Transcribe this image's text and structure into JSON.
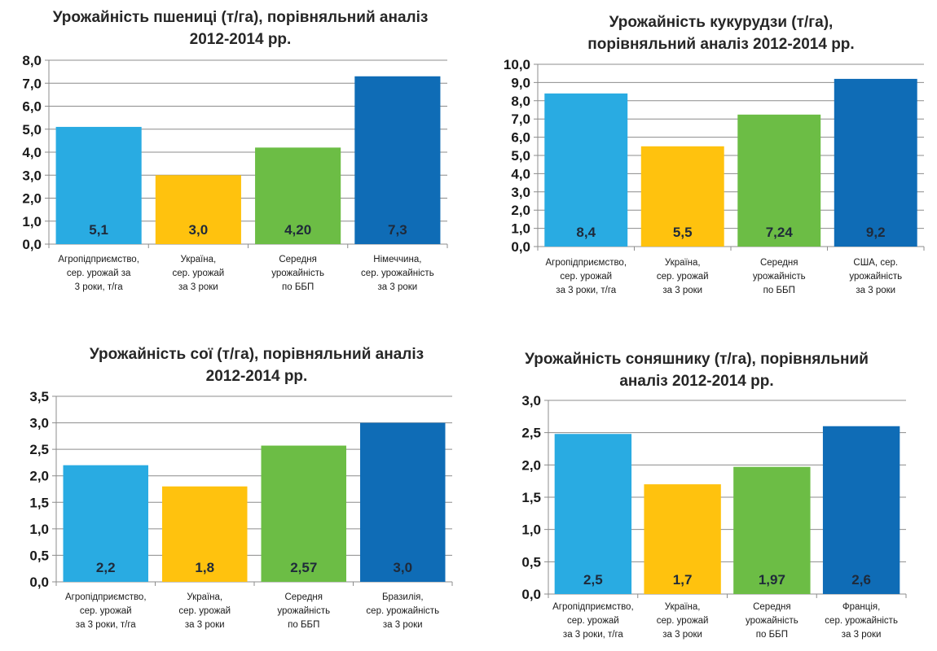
{
  "chart_data": [
    {
      "type": "bar",
      "title": "Урожайність пшениці (т/га), порівняльний аналіз\n2012-2014 рр.",
      "xlabel": "",
      "ylabel": "",
      "ylim": [
        0,
        8
      ],
      "yticks": [
        "0,0",
        "1,0",
        "2,0",
        "3,0",
        "4,0",
        "5,0",
        "6,0",
        "7,0",
        "8,0"
      ],
      "ytick_values": [
        0,
        1,
        2,
        3,
        4,
        5,
        6,
        7,
        8
      ],
      "grid": true,
      "categories": [
        [
          "Агропідприємство,",
          "сер. урожай за",
          "3 роки, т/га"
        ],
        [
          "Україна,",
          "сер. урожай",
          "за 3 роки"
        ],
        [
          "Середня",
          "урожайність",
          "по ББП"
        ],
        [
          "Німеччина,",
          "сер. урожайність",
          "за 3 роки"
        ]
      ],
      "values": [
        5.1,
        3.0,
        4.2,
        7.3
      ],
      "data_labels": [
        "5,1",
        "3,0",
        "4,20",
        "7,3"
      ],
      "colors": [
        "#29abe2",
        "#ffc20e",
        "#6cbd45",
        "#0f6cb6"
      ]
    },
    {
      "type": "bar",
      "title": "Урожайність кукурудзи (т/га),\nпорівняльний  аналіз  2012-2014 рр.",
      "xlabel": "",
      "ylabel": "",
      "ylim": [
        0,
        10
      ],
      "yticks": [
        "0,0",
        "1,0",
        "2,0",
        "3,0",
        "4,0",
        "5,0",
        "6,0",
        "7,0",
        "8,0",
        "9,0",
        "10,0"
      ],
      "ytick_values": [
        0,
        1,
        2,
        3,
        4,
        5,
        6,
        7,
        8,
        9,
        10
      ],
      "grid": true,
      "categories": [
        [
          "Агропідприємство,",
          "сер. урожай",
          "за 3 роки, т/га"
        ],
        [
          "Україна,",
          "сер. урожай",
          "за 3 роки"
        ],
        [
          "Середня",
          "урожайність",
          "по ББП"
        ],
        [
          "США, сер.",
          "урожайність",
          "за 3 роки"
        ]
      ],
      "values": [
        8.4,
        5.5,
        7.24,
        9.2
      ],
      "data_labels": [
        "8,4",
        "5,5",
        "7,24",
        "9,2"
      ],
      "colors": [
        "#29abe2",
        "#ffc20e",
        "#6cbd45",
        "#0f6cb6"
      ]
    },
    {
      "type": "bar",
      "title": "Урожайність сої (т/га), порівняльний аналіз\n2012-2014 рр.",
      "xlabel": "",
      "ylabel": "",
      "ylim": [
        0,
        3.5
      ],
      "yticks": [
        "0,0",
        "0,5",
        "1,0",
        "1,5",
        "2,0",
        "2,5",
        "3,0",
        "3,5"
      ],
      "ytick_values": [
        0,
        0.5,
        1,
        1.5,
        2,
        2.5,
        3,
        3.5
      ],
      "grid": true,
      "categories": [
        [
          "Агропідприємство,",
          "сер. урожай",
          "за 3 роки, т/га"
        ],
        [
          "Україна,",
          "сер. урожай",
          "за 3 роки"
        ],
        [
          "Середня",
          "урожайність",
          "по ББП"
        ],
        [
          "Бразилія,",
          "сер. урожайність",
          "за 3 роки"
        ]
      ],
      "values": [
        2.2,
        1.8,
        2.57,
        3.0
      ],
      "data_labels": [
        "2,2",
        "1,8",
        "2,57",
        "3,0"
      ],
      "colors": [
        "#29abe2",
        "#ffc20e",
        "#6cbd45",
        "#0f6cb6"
      ]
    },
    {
      "type": "bar",
      "title": "Урожайність соняшнику (т/га), порівняльний\nаналіз 2012-2014 рр.",
      "xlabel": "",
      "ylabel": "",
      "ylim": [
        0,
        3
      ],
      "yticks": [
        "0,0",
        "0,5",
        "1,0",
        "1,5",
        "2,0",
        "2,5",
        "3,0"
      ],
      "ytick_values": [
        0,
        0.5,
        1,
        1.5,
        2,
        2.5,
        3
      ],
      "grid": true,
      "categories": [
        [
          "Агропідприємство,",
          "сер. урожай",
          "за 3 роки, т/га"
        ],
        [
          "Україна,",
          "сер. урожай",
          "за 3 роки"
        ],
        [
          "Середня",
          "урожайність",
          "по ББП"
        ],
        [
          "Франція,",
          "сер. урожайність",
          "за 3 роки"
        ]
      ],
      "values": [
        2.48,
        1.7,
        1.97,
        2.6
      ],
      "data_labels": [
        "2,5",
        "1,7",
        "1,97",
        "2,6"
      ],
      "colors": [
        "#29abe2",
        "#ffc20e",
        "#6cbd45",
        "#0f6cb6"
      ]
    }
  ]
}
